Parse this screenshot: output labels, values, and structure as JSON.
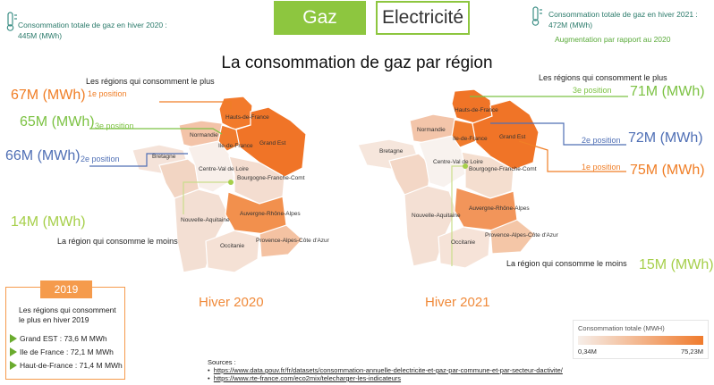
{
  "tabs": {
    "gaz": "Gaz",
    "electricite": "Electricité"
  },
  "left_stat": {
    "label": "Consommation totale de gaz en hiver 2020 :",
    "value": "445M (MWh)"
  },
  "right_stat": {
    "label": "Consommation totale de gaz en hiver 2021 :",
    "value": "472M (MWh)",
    "note": "Augmentation par rapport au 2020"
  },
  "title": "La consommation de gaz par région",
  "map2020": {
    "label": "Hiver 2020",
    "top_header": "Les régions qui consomment le plus",
    "low_header": "La région qui consomme le moins",
    "pos1_value": "67M (MWh)",
    "pos1_label": "1e position",
    "pos3_value": "65M (MWh)",
    "pos3_label": "3e position",
    "pos2_value": "66M (MWh)",
    "pos2_label": "2e position",
    "low_value": "14M (MWh)"
  },
  "map2021": {
    "label": "Hiver 2021",
    "top_header": "Les régions qui consomment le plus",
    "low_header": "La région qui consomme le moins",
    "pos3_value": "71M (MWh)",
    "pos3_label": "3e position",
    "pos2_value": "72M (MWh)",
    "pos2_label": "2e position",
    "pos1_value": "75M (MWh)",
    "pos1_label": "1e position",
    "low_value": "15M (MWh)"
  },
  "regions": {
    "hdf": "Hauts-de-France",
    "normandie": "Normandie",
    "idf": "Ile-de-France",
    "grand_est": "Grand Est",
    "bretagne": "Bretagne",
    "cvl": "Centre-Val de Loire",
    "bfc": "Bourgogne-Franche-Comt",
    "na": "Nouvelle-Aquitaine",
    "ara": "Auvergne-Rhône-Alpes",
    "occitanie": "Occitanie",
    "paca": "Provence-Alpes-Côte d'Azur"
  },
  "box2019": {
    "year": "2019",
    "header": "Les régions qui consomment le plus en hiver 2019",
    "items": [
      "Grand EST : 73,6 M MWh",
      "Ile de France : 72,1 M MWh",
      "Haut-de-France : 71,4 M MWh"
    ]
  },
  "sources": {
    "label": "Sources :",
    "links": [
      "https://www.data.gouv.fr/fr/datasets/consommation-annuelle-delectricite-et-gaz-par-commune-et-par-secteur-dactivite/",
      "https://www.rte-france.com/eco2mix/telecharger-les-indicateurs"
    ]
  },
  "legend": {
    "title": "Consommation totale (MWH)",
    "min": "0,34M",
    "max": "75,23M"
  },
  "colors": {
    "accent_green": "#8dc63f",
    "accent_orange": "#f07e26",
    "blue": "#4f6fb5"
  }
}
